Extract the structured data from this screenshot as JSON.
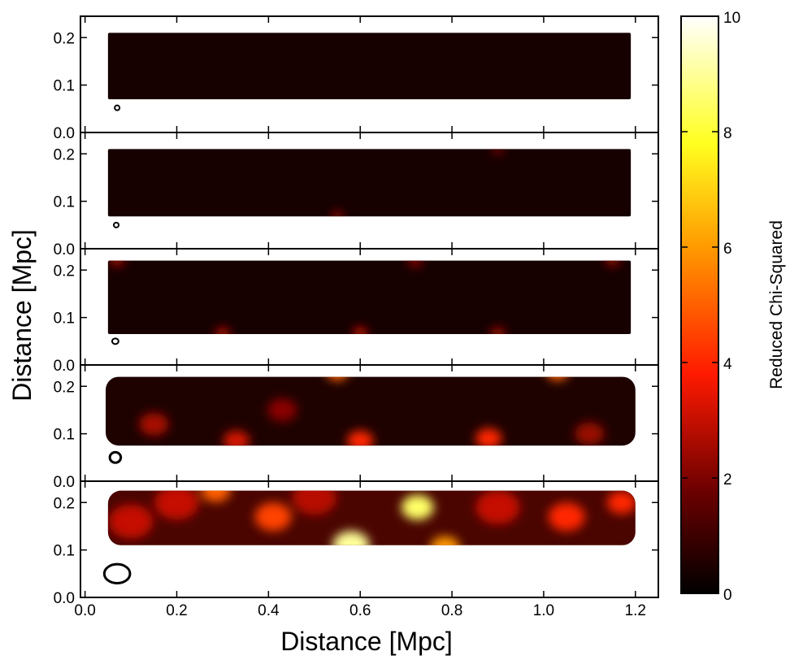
{
  "chart_data": {
    "type": "heatmap",
    "xlabel": "Distance [Mpc]",
    "ylabel": "Distance [Mpc]",
    "xlim": [
      -0.01,
      1.25
    ],
    "ylim": [
      0.0,
      0.245
    ],
    "xticks": [
      0.0,
      0.2,
      0.4,
      0.6,
      0.8,
      1.0,
      1.2
    ],
    "yticks": [
      0.0,
      0.1,
      0.2
    ],
    "colorbar": {
      "label": "Reduced Chi-Squared",
      "min": 0,
      "max": 10,
      "ticks": [
        0,
        2,
        4,
        6,
        8,
        10
      ],
      "colormap": "hot",
      "colors": [
        "#000000",
        "#8b0000",
        "#ff2000",
        "#ff8c00",
        "#ffff00",
        "#ffffff"
      ]
    },
    "panels": [
      {
        "band_x": [
          0.05,
          1.19
        ],
        "band_y": [
          0.07,
          0.21
        ],
        "beam": {
          "x": 0.07,
          "y": 0.052,
          "rx": 0.004,
          "ry": 0.003
        },
        "hotspots": []
      },
      {
        "band_x": [
          0.05,
          1.19
        ],
        "band_y": [
          0.068,
          0.21
        ],
        "beam": {
          "x": 0.068,
          "y": 0.05,
          "rx": 0.005,
          "ry": 0.004
        },
        "hotspots": [
          {
            "x": 0.55,
            "y": 0.07,
            "v": 2.4,
            "r": 0.008
          },
          {
            "x": 0.9,
            "y": 0.208,
            "v": 2.0,
            "r": 0.008
          }
        ]
      },
      {
        "band_x": [
          0.05,
          1.19
        ],
        "band_y": [
          0.065,
          0.22
        ],
        "beam": {
          "x": 0.066,
          "y": 0.05,
          "rx": 0.007,
          "ry": 0.006
        },
        "hotspots": [
          {
            "x": 0.07,
            "y": 0.22,
            "v": 2.6,
            "r": 0.01
          },
          {
            "x": 0.3,
            "y": 0.067,
            "v": 2.8,
            "r": 0.01
          },
          {
            "x": 0.6,
            "y": 0.068,
            "v": 3.0,
            "r": 0.01
          },
          {
            "x": 0.9,
            "y": 0.067,
            "v": 2.6,
            "r": 0.01
          },
          {
            "x": 1.15,
            "y": 0.22,
            "v": 2.4,
            "r": 0.01
          },
          {
            "x": 0.72,
            "y": 0.218,
            "v": 2.2,
            "r": 0.01
          }
        ]
      },
      {
        "band_x": [
          0.045,
          1.2
        ],
        "band_y": [
          0.075,
          0.22
        ],
        "beam": {
          "x": 0.066,
          "y": 0.05,
          "rx": 0.012,
          "ry": 0.011
        },
        "hotspots": [
          {
            "x": 0.55,
            "y": 0.23,
            "v": 5.0,
            "r": 0.015
          },
          {
            "x": 1.03,
            "y": 0.23,
            "v": 5.0,
            "r": 0.015
          },
          {
            "x": 0.6,
            "y": 0.085,
            "v": 4.0,
            "r": 0.018
          },
          {
            "x": 0.88,
            "y": 0.09,
            "v": 4.0,
            "r": 0.018
          },
          {
            "x": 0.33,
            "y": 0.085,
            "v": 3.2,
            "r": 0.018
          },
          {
            "x": 0.15,
            "y": 0.12,
            "v": 2.6,
            "r": 0.02
          },
          {
            "x": 0.43,
            "y": 0.15,
            "v": 2.2,
            "r": 0.02
          },
          {
            "x": 1.1,
            "y": 0.1,
            "v": 2.4,
            "r": 0.02
          }
        ]
      },
      {
        "band_x": [
          0.05,
          1.2
        ],
        "band_y": [
          0.11,
          0.225
        ],
        "beam": {
          "x": 0.07,
          "y": 0.05,
          "rx": 0.028,
          "ry": 0.02
        },
        "hotspots": [
          {
            "x": 0.725,
            "y": 0.19,
            "v": 8.5,
            "r": 0.022
          },
          {
            "x": 0.58,
            "y": 0.11,
            "v": 9.0,
            "r": 0.025
          },
          {
            "x": 0.785,
            "y": 0.105,
            "v": 6.0,
            "r": 0.02
          },
          {
            "x": 0.285,
            "y": 0.225,
            "v": 5.0,
            "r": 0.02
          },
          {
            "x": 0.41,
            "y": 0.17,
            "v": 4.5,
            "r": 0.025
          },
          {
            "x": 0.2,
            "y": 0.2,
            "v": 3.0,
            "r": 0.03
          },
          {
            "x": 1.05,
            "y": 0.17,
            "v": 4.0,
            "r": 0.025
          },
          {
            "x": 1.17,
            "y": 0.2,
            "v": 4.0,
            "r": 0.02
          },
          {
            "x": 0.1,
            "y": 0.16,
            "v": 3.0,
            "r": 0.03
          },
          {
            "x": 0.9,
            "y": 0.19,
            "v": 3.0,
            "r": 0.03
          },
          {
            "x": 0.5,
            "y": 0.21,
            "v": 2.8,
            "r": 0.03
          }
        ]
      }
    ]
  }
}
